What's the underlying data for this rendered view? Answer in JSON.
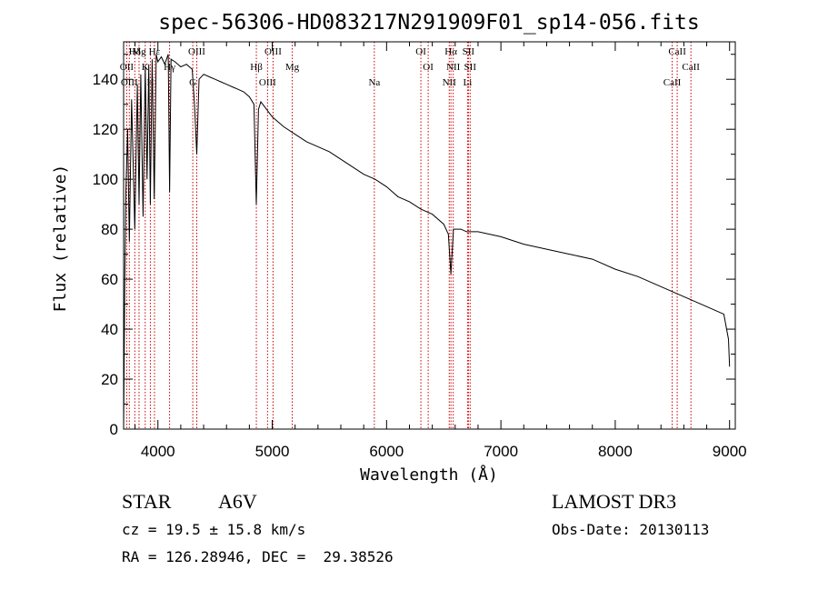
{
  "chart_data": {
    "type": "line",
    "title": "spec-56306-HD083217N291909F01_sp14-056.fits",
    "xlabel": "Wavelength (Å)",
    "ylabel": "Flux (relative)",
    "xlim": [
      3700,
      9050
    ],
    "ylim": [
      0,
      155
    ],
    "x_ticks": [
      4000,
      5000,
      6000,
      7000,
      8000,
      9000
    ],
    "y_ticks": [
      0,
      20,
      40,
      60,
      80,
      100,
      120,
      140
    ],
    "series": [
      {
        "name": "spectrum",
        "x": [
          3700,
          3710,
          3720,
          3735,
          3750,
          3770,
          3798,
          3820,
          3835,
          3850,
          3870,
          3889,
          3905,
          3920,
          3934,
          3950,
          3968,
          3985,
          4000,
          4030,
          4060,
          4090,
          4102,
          4115,
          4150,
          4200,
          4250,
          4300,
          4320,
          4340,
          4360,
          4400,
          4450,
          4500,
          4550,
          4600,
          4650,
          4700,
          4750,
          4800,
          4840,
          4861,
          4880,
          4900,
          4950,
          5000,
          5100,
          5200,
          5300,
          5400,
          5500,
          5600,
          5700,
          5800,
          5900,
          6000,
          6100,
          6200,
          6300,
          6400,
          6500,
          6540,
          6563,
          6585,
          6650,
          6700,
          6800,
          7000,
          7200,
          7400,
          7600,
          7800,
          8000,
          8200,
          8400,
          8500,
          8600,
          8700,
          8800,
          8900,
          8950,
          8990,
          9000
        ],
        "y": [
          0,
          60,
          95,
          120,
          75,
          132,
          80,
          138,
          90,
          142,
          85,
          145,
          100,
          146,
          90,
          148,
          92,
          150,
          147,
          149,
          146,
          150,
          95,
          148,
          147,
          145,
          146,
          144,
          130,
          110,
          140,
          142,
          141,
          140,
          139,
          138,
          137,
          136,
          135,
          133,
          130,
          90,
          128,
          131,
          128,
          125,
          121,
          118,
          115,
          113,
          111,
          108,
          105,
          102,
          100,
          97,
          93,
          91,
          88,
          86,
          82,
          78,
          62,
          80,
          80,
          79,
          79,
          77,
          74,
          72,
          70,
          68,
          64,
          61,
          57,
          55,
          53,
          51,
          49,
          47,
          46,
          36,
          25
        ]
      }
    ],
    "spectral_lines": [
      {
        "label": "Hδ",
        "x": 3798
      },
      {
        "label": "OII",
        "x": 3727
      },
      {
        "label": "OIII",
        "x": 3750
      },
      {
        "label": "Mg",
        "x": 3835
      },
      {
        "label": "K",
        "x": 3889
      },
      {
        "label": "H",
        "x": 3934
      },
      {
        "label": "Hε",
        "x": 3970
      },
      {
        "label": "Hγ",
        "x": 4102
      },
      {
        "label": "G",
        "x": 4305
      },
      {
        "label": "OIII",
        "x": 4340
      },
      {
        "label": "Hβ",
        "x": 4861
      },
      {
        "label": "OIII",
        "x": 4959
      },
      {
        "label": "OIII",
        "x": 5007
      },
      {
        "label": "Mg",
        "x": 5175
      },
      {
        "label": "Na",
        "x": 5893
      },
      {
        "label": "OI",
        "x": 6300
      },
      {
        "label": "OI",
        "x": 6364
      },
      {
        "label": "NII",
        "x": 6548
      },
      {
        "label": "Hα",
        "x": 6563
      },
      {
        "label": "NII",
        "x": 6583
      },
      {
        "label": "Li",
        "x": 6708
      },
      {
        "label": "SII",
        "x": 6716
      },
      {
        "label": "SII",
        "x": 6731
      },
      {
        "label": "CaII",
        "x": 8498
      },
      {
        "label": "CaII",
        "x": 8542
      },
      {
        "label": "CaII",
        "x": 8662
      }
    ]
  },
  "info": {
    "object_class": "STAR",
    "subclass": "A6V",
    "survey": "LAMOST DR3",
    "cz": "cz = 19.5 ± 15.8 km/s",
    "obs_date": "Obs-Date: 20130113",
    "coords": "RA = 126.28946, DEC =  29.38526"
  }
}
